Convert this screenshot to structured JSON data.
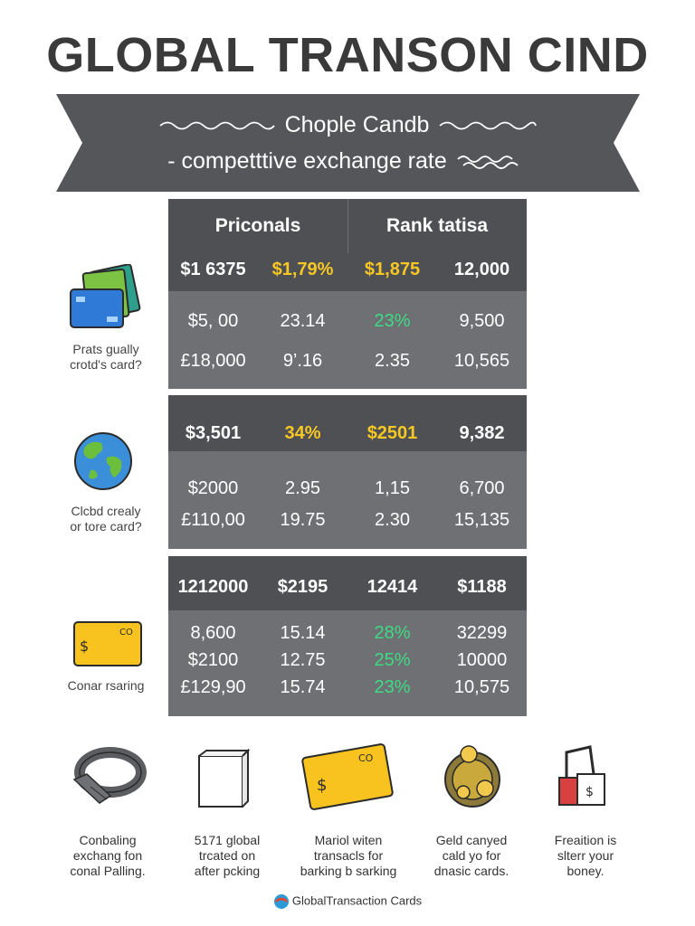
{
  "title": "GLOBAL TRANSON CIND",
  "banner": {
    "line1": "Chople Candb",
    "line2": "- competttive exchange rate"
  },
  "tables": [
    {
      "header_left": "Priconals",
      "header_right": "Rank tatisa",
      "rows": [
        [
          "$1 6375",
          "$1,79%",
          "$1,875",
          "12,000"
        ],
        [
          "$5, 00",
          "23.14",
          "23%",
          "9,500"
        ],
        [
          "£18,000",
          "9’.16",
          "2.35",
          "10,565"
        ]
      ]
    },
    {
      "rows": [
        [
          "$3,501",
          "34%",
          "$2501",
          "9,382"
        ],
        [
          "$2000",
          "2.95",
          "1,15",
          "6,700"
        ],
        [
          "£110,00",
          "19.75",
          "2.30",
          "15,135"
        ]
      ]
    },
    {
      "rows": [
        [
          "1212000",
          "$2195",
          "12414",
          "$1188"
        ],
        [
          "8,600",
          "15.14",
          "28%",
          "32299"
        ],
        [
          "$2100",
          "12.75",
          "25%",
          "10000"
        ],
        [
          "£129,90",
          "15.74",
          "23%",
          "10,575"
        ]
      ]
    }
  ],
  "side_labels": {
    "cards": {
      "line1": "Prats gually",
      "line2": "crotd's card?"
    },
    "globe": {
      "line1": "Clcbd crealy",
      "line2": "or tore card?"
    },
    "card_yellow": {
      "line1": "Conar rsaring"
    }
  },
  "bottom": [
    {
      "line1": "Conbaling",
      "line2": "exchang fon",
      "line3": "conal Palling."
    },
    {
      "line1": "5171 global",
      "line2": "trcated on",
      "line3": "after pcking"
    },
    {
      "line1": "Mariol witen",
      "line2": "transacls for",
      "line3": "barking b sarking"
    },
    {
      "line1": "Geld canyed",
      "line2": "cald yo for",
      "line3": "dnasic cards."
    },
    {
      "line1": "Freaition is",
      "line2": "slterr your",
      "line3": "boney."
    }
  ],
  "footer": {
    "brand": "GlobalTransaction Cards"
  },
  "colors": {
    "dark": "#4f5054",
    "panel": "#6e7074",
    "gold": "#f7c824",
    "green": "#3ddc84",
    "banner": "#55565a"
  }
}
